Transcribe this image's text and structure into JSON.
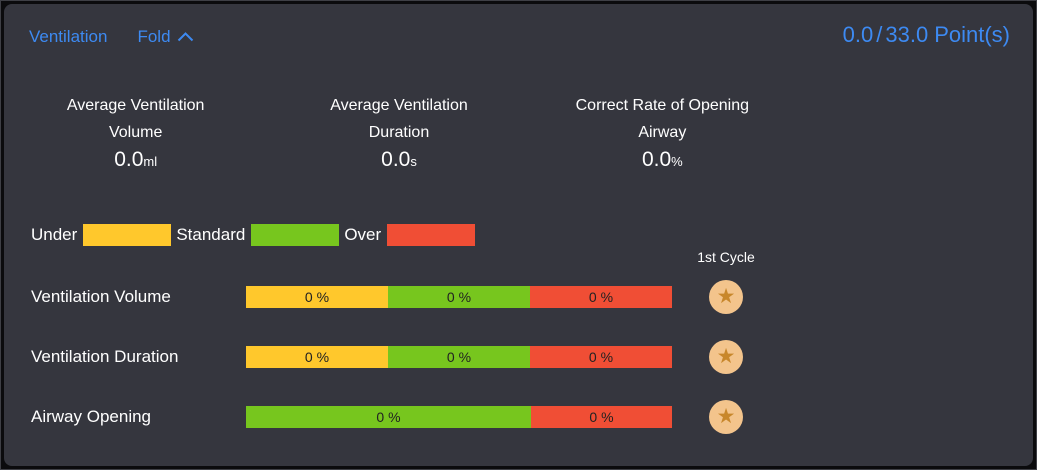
{
  "panel": {
    "title": "Ventilation",
    "fold_label": "Fold",
    "score": {
      "current": "0.0",
      "separator": "/",
      "total": "33.0",
      "unit": "Point(s)"
    }
  },
  "stats": [
    {
      "label_line1": "Average Ventilation",
      "label_line2": "Volume",
      "value": "0.0",
      "unit": "ml"
    },
    {
      "label_line1": "Average Ventilation",
      "label_line2": "Duration",
      "value": "0.0",
      "unit": "s"
    },
    {
      "label_line1": "Correct Rate of Opening",
      "label_line2": "Airway",
      "value": "0.0",
      "unit": "%"
    }
  ],
  "legend": {
    "items": [
      {
        "label": "Under",
        "color": "#FFC82C"
      },
      {
        "label": "Standard",
        "color": "#77C61E"
      },
      {
        "label": "Over",
        "color": "#F04E35"
      }
    ]
  },
  "cycle_header": "1st Cycle",
  "colors": {
    "accent_blue": "#3D8AF2",
    "panel_bg": "#35363E",
    "under_yellow": "#FFC82C",
    "standard_green": "#77C61E",
    "over_red": "#F04E35",
    "star_badge_bg": "#F3C48C",
    "star": "#C8872B"
  },
  "icons": {
    "star": "★"
  },
  "chart_data": {
    "type": "bar",
    "title": "Ventilation distribution per category",
    "legend_position": "top",
    "categories": [
      "Under",
      "Standard",
      "Over"
    ],
    "rows": [
      {
        "label": "Ventilation Volume",
        "cycle_badge": "1st Cycle star",
        "segments": [
          {
            "category": "Under",
            "value": 0,
            "value_label": "0 %",
            "width_pct": 33.33,
            "color": "#FFC82C"
          },
          {
            "category": "Standard",
            "value": 0,
            "value_label": "0 %",
            "width_pct": 33.34,
            "color": "#77C61E"
          },
          {
            "category": "Over",
            "value": 0,
            "value_label": "0 %",
            "width_pct": 33.33,
            "color": "#F04E35"
          }
        ]
      },
      {
        "label": "Ventilation Duration",
        "cycle_badge": "1st Cycle star",
        "segments": [
          {
            "category": "Under",
            "value": 0,
            "value_label": "0 %",
            "width_pct": 33.33,
            "color": "#FFC82C"
          },
          {
            "category": "Standard",
            "value": 0,
            "value_label": "0 %",
            "width_pct": 33.34,
            "color": "#77C61E"
          },
          {
            "category": "Over",
            "value": 0,
            "value_label": "0 %",
            "width_pct": 33.33,
            "color": "#F04E35"
          }
        ]
      },
      {
        "label": "Airway Opening",
        "cycle_badge": "1st Cycle star",
        "segments": [
          {
            "category": "Standard",
            "value": 0,
            "value_label": "0 %",
            "width_pct": 66.9,
            "color": "#77C61E"
          },
          {
            "category": "Over",
            "value": 0,
            "value_label": "0 %",
            "width_pct": 33.1,
            "color": "#F04E35"
          }
        ]
      }
    ]
  }
}
